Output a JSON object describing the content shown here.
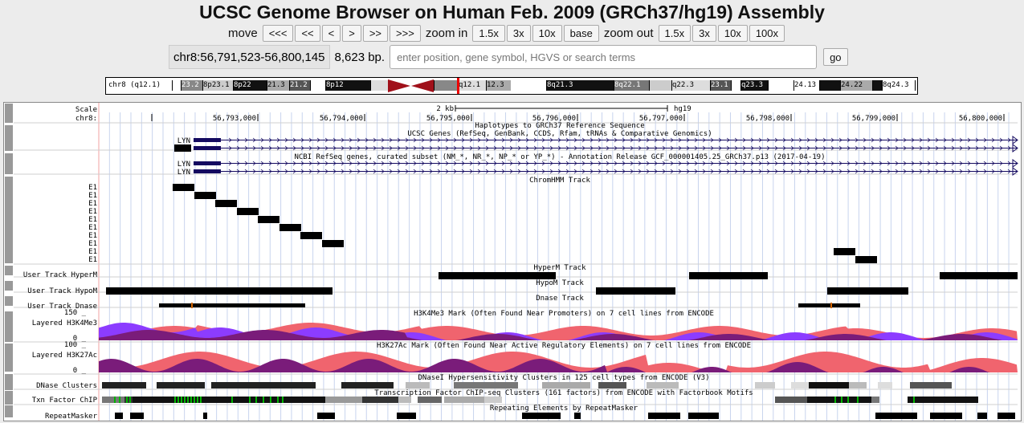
{
  "title": "UCSC Genome Browser on Human Feb. 2009 (GRCh37/hg19) Assembly",
  "nav": {
    "move_label": "move",
    "move_buttons": [
      "<<<",
      "<<",
      "<",
      ">",
      ">>",
      ">>>"
    ],
    "zoom_in_label": "zoom in",
    "zoom_in_buttons": [
      "1.5x",
      "3x",
      "10x",
      "base"
    ],
    "zoom_out_label": "zoom out",
    "zoom_out_buttons": [
      "1.5x",
      "3x",
      "10x",
      "100x"
    ]
  },
  "position": {
    "value": "chr8:56,791,523-56,800,145",
    "size": "8,623 bp.",
    "search_placeholder": "enter position, gene symbol, HGVS or search terms",
    "go_label": "go"
  },
  "ideogram": {
    "chrom_label": "chr8 (q12.1)",
    "bands": [
      "23.2",
      "8p23.1",
      "8p22",
      "21.3",
      "21.2",
      "8p12",
      "q12.1",
      "12.3",
      "8q21.3",
      "8q22.1",
      "q22.3",
      "23.1",
      "q23.3",
      "24.13",
      "24.22",
      "8q24.3"
    ]
  },
  "ruler": {
    "scale_label": "Scale",
    "scale_value": "2 kb",
    "assembly": "hg19",
    "chrom_label": "chr8:",
    "ticks": [
      "56,793,000",
      "56,794,000",
      "56,795,000",
      "56,796,000",
      "56,797,000",
      "56,798,000",
      "56,799,000",
      "56,800,000"
    ]
  },
  "tracks": {
    "haplotypes": "Haplotypes to GRCh37 Reference Sequence",
    "ucsc_genes": "UCSC Genes (RefSeq, GenBank, CCDS, Rfam, tRNAs & Comparative Genomics)",
    "gene_name": "LYN",
    "refseq": "NCBI RefSeq genes, curated subset (NM_*, NR_*, NP_* or YP_*) - Annotation Release GCF_000001405.25_GRCh37.p13 (2017-04-19)",
    "chromhmm": "ChromHMM Track",
    "chromhmm_item": "E1",
    "hyperm_title": "HyperM Track",
    "hyperm_label": "User Track HyperM",
    "hypom_title": "HypoM Track",
    "hypom_label": "User Track HypoM",
    "dnase_title": "Dnase Track",
    "dnase_label": "User Track Dnase",
    "h3k4me3_title": "H3K4Me3 Mark (Often Found Near Promoters) on 7 cell lines from ENCODE",
    "h3k4me3_label": "Layered H3K4Me3",
    "h3k4me3_max": "150 _",
    "h3k4me3_min": "0 _",
    "h3k27ac_title": "H3K27Ac Mark (Often Found Near Active Regulatory Elements) on 7 cell lines from ENCODE",
    "h3k27ac_label": "Layered H3K27Ac",
    "h3k27ac_max": "100 _",
    "h3k27ac_min": "0 _",
    "dnase_clusters_title": "DNaseI Hypersensitivity Clusters in 125 cell types from ENCODE (V3)",
    "dnase_clusters_label": "DNase Clusters",
    "tfbs_title": "Transcription Factor ChIP-seq Clusters (161 factors) from ENCODE with Factorbook Motifs",
    "tfbs_label": "Txn Factor ChIP",
    "rmsk_title": "Repeating Elements by RepeatMasker",
    "rmsk_label": "RepeatMasker"
  },
  "colors": {
    "gene": "#140a60",
    "h3_purple": "#7a1c7a",
    "h3_pink": "#f0646e",
    "h3_violet": "#8c3cff",
    "tf_green": "#00b400"
  }
}
